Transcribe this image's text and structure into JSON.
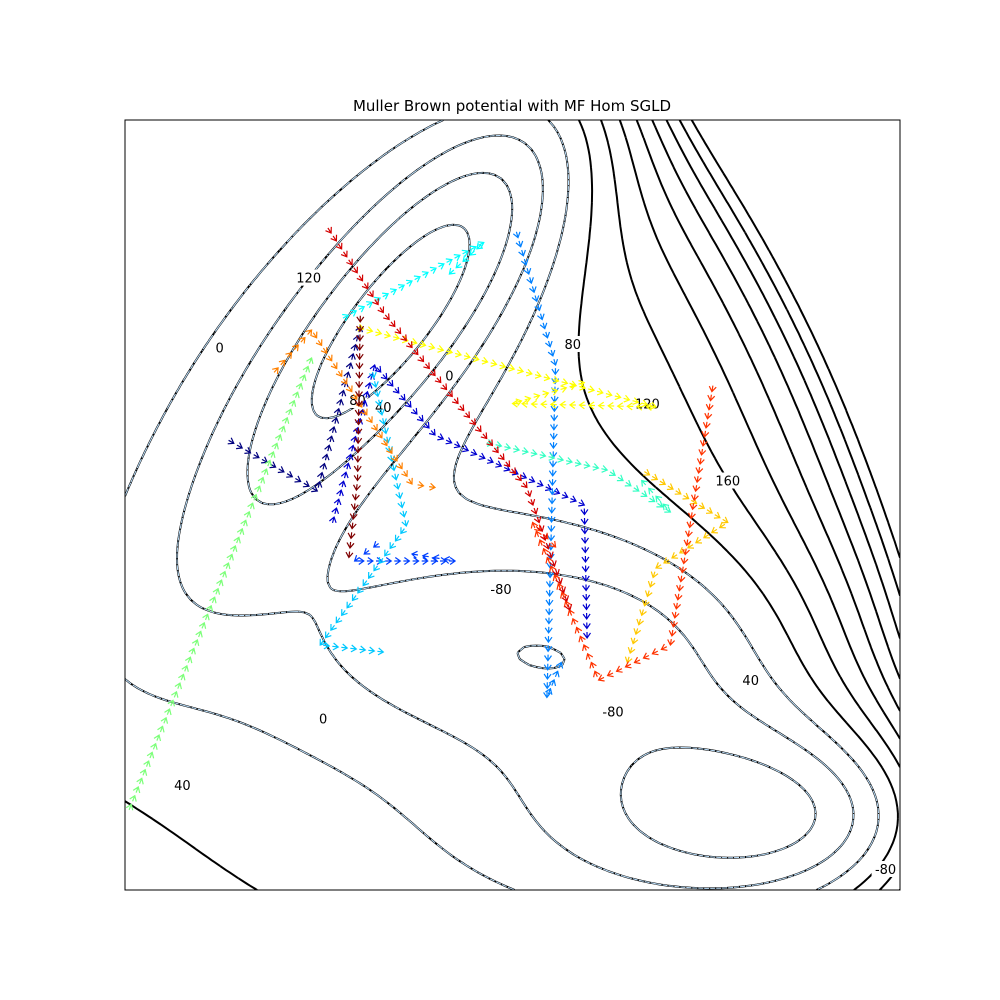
{
  "chart_data": {
    "type": "contour-quiver",
    "title": "Muller Brown potential with MF Hom SGLD",
    "xlabel": "",
    "ylabel": "",
    "xlim": [
      -1.5,
      1.2
    ],
    "ylim": [
      -0.2,
      2.0
    ],
    "axis_ticks": "hidden",
    "contour_labels": [
      {
        "text": "120",
        "x": -0.86,
        "y": 1.55
      },
      {
        "text": "0",
        "x": -1.17,
        "y": 1.35
      },
      {
        "text": "80",
        "x": -0.69,
        "y": 1.2
      },
      {
        "text": "40",
        "x": -0.6,
        "y": 1.18
      },
      {
        "text": "0",
        "x": -0.37,
        "y": 1.27
      },
      {
        "text": "80",
        "x": 0.06,
        "y": 1.36
      },
      {
        "text": "120",
        "x": 0.32,
        "y": 1.19
      },
      {
        "text": "160",
        "x": 0.6,
        "y": 0.97
      },
      {
        "text": "-80",
        "x": -0.19,
        "y": 0.66
      },
      {
        "text": "40",
        "x": 0.68,
        "y": 0.4
      },
      {
        "text": "-80",
        "x": 0.2,
        "y": 0.31
      },
      {
        "text": "0",
        "x": -0.81,
        "y": 0.29
      },
      {
        "text": "40",
        "x": -1.3,
        "y": 0.1
      },
      {
        "text": "-80",
        "x": 1.15,
        "y": -0.14
      }
    ],
    "trajectories": [
      {
        "color": "#00007f",
        "points": [
          [
            -1.15,
            1.09
          ],
          [
            -0.83,
            0.94
          ],
          [
            -0.68,
            1.41
          ]
        ]
      },
      {
        "color": "#0000d0",
        "points": [
          [
            -0.78,
            0.84
          ],
          [
            -0.63,
            1.3
          ],
          [
            -0.42,
            1.1
          ],
          [
            0.1,
            0.9
          ],
          [
            0.11,
            0.52
          ]
        ]
      },
      {
        "color": "#0040ff",
        "points": [
          [
            -0.6,
            0.8
          ],
          [
            -0.7,
            0.74
          ],
          [
            -0.35,
            0.74
          ],
          [
            -0.5,
            0.76
          ]
        ]
      },
      {
        "color": "#0080ff",
        "points": [
          [
            -0.14,
            1.69
          ],
          [
            0.0,
            1.3
          ],
          [
            -0.03,
            0.35
          ],
          [
            0.02,
            0.45
          ]
        ]
      },
      {
        "color": "#00c8ff",
        "points": [
          [
            -0.64,
            1.29
          ],
          [
            -0.52,
            0.84
          ],
          [
            -0.82,
            0.5
          ],
          [
            -0.6,
            0.48
          ]
        ]
      },
      {
        "color": "#33ffc3",
        "points": [
          [
            -0.25,
            1.08
          ],
          [
            0.18,
            1.0
          ],
          [
            0.4,
            0.88
          ],
          [
            0.3,
            0.97
          ]
        ]
      },
      {
        "color": "#00ffff",
        "points": [
          [
            -0.75,
            1.43
          ],
          [
            -0.25,
            1.65
          ],
          [
            -0.37,
            1.56
          ]
        ]
      },
      {
        "color": "#7dff7a",
        "points": [
          [
            -1.49,
            0.02
          ],
          [
            -1.26,
            0.49
          ],
          [
            -0.85,
            1.32
          ]
        ]
      },
      {
        "color": "#ffff00",
        "points": [
          [
            -0.7,
            1.41
          ],
          [
            0.35,
            1.18
          ],
          [
            -0.15,
            1.19
          ],
          [
            0.1,
            1.25
          ]
        ]
      },
      {
        "color": "#ffc800",
        "points": [
          [
            0.3,
            1.0
          ],
          [
            0.6,
            0.85
          ],
          [
            0.35,
            0.72
          ],
          [
            0.25,
            0.45
          ]
        ]
      },
      {
        "color": "#ff8000",
        "points": [
          [
            -0.99,
            1.27
          ],
          [
            -0.85,
            1.4
          ],
          [
            -0.5,
            0.96
          ],
          [
            -0.42,
            0.95
          ]
        ]
      },
      {
        "color": "#ff3300",
        "points": [
          [
            0.55,
            1.25
          ],
          [
            0.4,
            0.5
          ],
          [
            0.15,
            0.4
          ],
          [
            -0.08,
            0.85
          ],
          [
            0.0,
            0.78
          ]
        ]
      },
      {
        "color": "#d40000",
        "points": [
          [
            -0.8,
            1.7
          ],
          [
            -0.6,
            1.45
          ],
          [
            -0.1,
            0.95
          ],
          [
            0.05,
            0.6
          ]
        ]
      },
      {
        "color": "#7f0000",
        "points": [
          [
            -0.68,
            1.45
          ],
          [
            -0.69,
            0.97
          ],
          [
            -0.72,
            0.75
          ]
        ]
      }
    ]
  }
}
